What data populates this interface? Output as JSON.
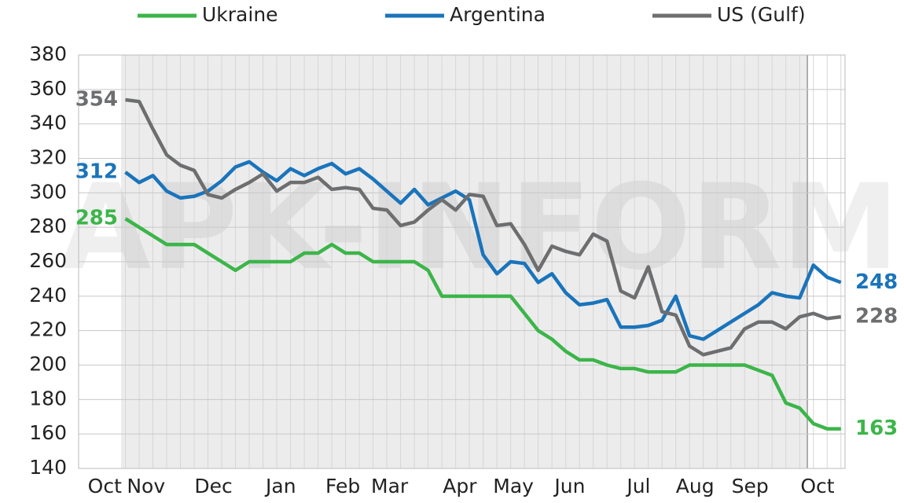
{
  "chart_data": {
    "type": "line",
    "watermark": "APK-INFORM",
    "legend": "top",
    "grid": true,
    "xlim": [
      -3.4,
      52.3
    ],
    "xticks": [
      {
        "value": -1.5,
        "label": "Oct"
      },
      {
        "value": 1.5,
        "label": "Nov"
      },
      {
        "value": 6.4,
        "label": "Dec"
      },
      {
        "value": 11.3,
        "label": "Jan"
      },
      {
        "value": 15.8,
        "label": "Feb"
      },
      {
        "value": 19.2,
        "label": "Mar"
      },
      {
        "value": 24.3,
        "label": "Apr"
      },
      {
        "value": 28.2,
        "label": "May"
      },
      {
        "value": 32.3,
        "label": "Jun"
      },
      {
        "value": 37.3,
        "label": "Jul"
      },
      {
        "value": 41.4,
        "label": "Aug"
      },
      {
        "value": 45.4,
        "label": "Sep"
      },
      {
        "value": 50.3,
        "label": "Oct"
      }
    ],
    "ylim": [
      140,
      380
    ],
    "yticks": [
      140,
      160,
      180,
      200,
      220,
      240,
      260,
      280,
      300,
      320,
      340,
      360,
      380
    ],
    "series": [
      {
        "name": "Ukraine",
        "color": "#3cb54a",
        "values": [
          285,
          280,
          275,
          270,
          270,
          270,
          265,
          260,
          255,
          260,
          260,
          260,
          260,
          265,
          265,
          270,
          265,
          265,
          260,
          260,
          260,
          260,
          255,
          240,
          240,
          240,
          240,
          240,
          240,
          230,
          220,
          215,
          208,
          203,
          203,
          200,
          198,
          198,
          196,
          196,
          196,
          200,
          200,
          200,
          200,
          200,
          197,
          194,
          178,
          175,
          166,
          163,
          163
        ]
      },
      {
        "name": "Argentina",
        "color": "#1a74bb",
        "values": [
          312,
          306,
          310,
          301,
          297,
          298,
          301,
          307,
          315,
          318,
          312,
          307,
          314,
          310,
          314,
          317,
          311,
          314,
          308,
          301,
          294,
          302,
          293,
          297,
          301,
          296,
          264,
          253,
          260,
          259,
          248,
          253,
          242,
          235,
          236,
          238,
          222,
          222,
          223,
          226,
          240,
          217,
          215,
          220,
          225,
          230,
          235,
          242,
          240,
          239,
          258,
          251,
          248
        ]
      },
      {
        "name": "US (Gulf)",
        "color": "#6d6e70",
        "values": [
          354,
          353,
          337,
          322,
          316,
          313,
          299,
          297,
          302,
          306,
          311,
          301,
          306,
          306,
          309,
          302,
          303,
          302,
          291,
          290,
          281,
          283,
          290,
          296,
          290,
          299,
          298,
          281,
          282,
          270,
          255,
          269,
          266,
          264,
          276,
          272,
          243,
          239,
          257,
          231,
          229,
          211,
          206,
          208,
          210,
          221,
          225,
          225,
          221,
          228,
          230,
          227,
          228
        ]
      }
    ]
  }
}
